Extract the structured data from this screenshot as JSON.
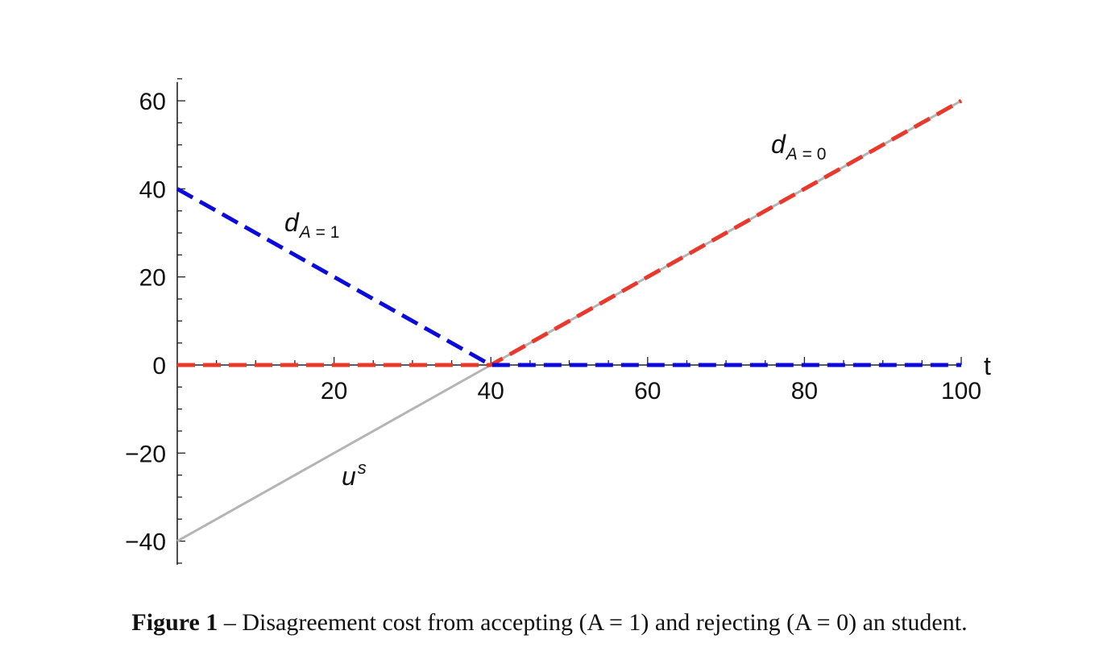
{
  "chart_data": {
    "type": "line",
    "xlabel": "t",
    "ylabel": "",
    "xlim": [
      0,
      100
    ],
    "ylim": [
      -45,
      65
    ],
    "x_ticks": [
      20,
      40,
      60,
      80,
      100
    ],
    "y_ticks": [
      -40,
      -20,
      0,
      20,
      40,
      60
    ],
    "x_minor_step": 5,
    "y_minor_step": 5,
    "grid": false,
    "series": [
      {
        "label_base": "u",
        "label_sup": "s",
        "color": "#b4b4b4",
        "style": "solid",
        "x": [
          0,
          40,
          100
        ],
        "y": [
          -40,
          0,
          60
        ]
      },
      {
        "label_base": "d",
        "label_sub": "A = 0",
        "color": "#e8392c",
        "style": "dashed",
        "x": [
          0,
          40,
          100
        ],
        "y": [
          0,
          0,
          60
        ]
      },
      {
        "label_base": "d",
        "label_sub": "A = 1",
        "color": "#0a0adc",
        "style": "dashed",
        "x": [
          0,
          40,
          100
        ],
        "y": [
          40,
          0,
          0
        ]
      }
    ]
  },
  "caption": {
    "figure_number": "Figure 1",
    "text": " – Disagreement cost from accepting (A = 1) and rejecting (A = 0) an student."
  }
}
